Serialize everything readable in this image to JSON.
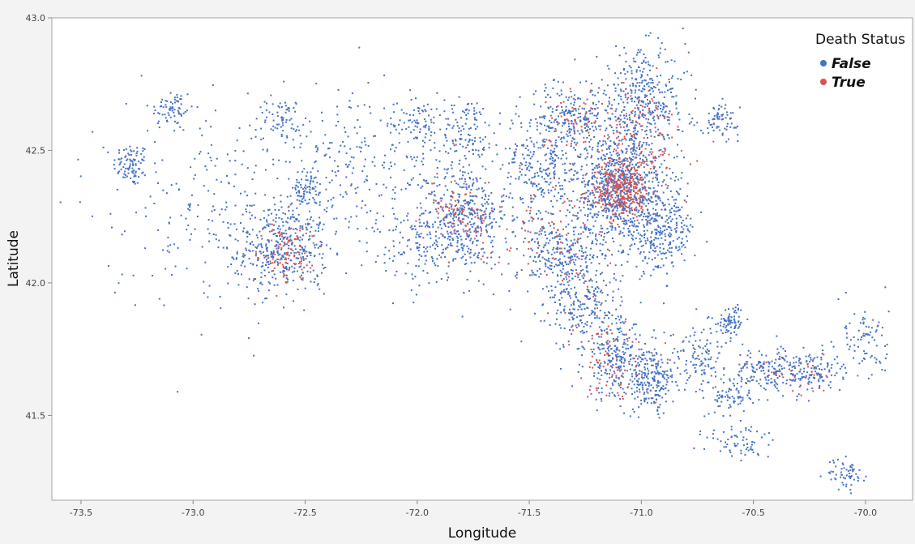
{
  "chart_data": {
    "type": "scatter",
    "title": "",
    "xlabel": "Longitude",
    "ylabel": "Latitude",
    "xlim": [
      -73.63,
      -69.79
    ],
    "ylim": [
      41.18,
      43.0
    ],
    "xticks": [
      -73.5,
      -73.0,
      -72.5,
      -72.0,
      -71.5,
      -71.0,
      -70.5,
      -70.0
    ],
    "xtick_labels": [
      "-73.5",
      "-73.0",
      "-72.5",
      "-72.0",
      "-71.5",
      "-71.0",
      "-70.5",
      "-70.0"
    ],
    "yticks": [
      41.5,
      42.0,
      42.5,
      43.0
    ],
    "ytick_labels": [
      "41.5",
      "42.0",
      "42.5",
      "43.0"
    ],
    "grid": false,
    "legend_position": "top-right",
    "legend_title": "Death Status",
    "series": [
      {
        "name": "False",
        "color": "#4472c4",
        "description": "dense point cloud covering Massachusetts; values given as clusters with point counts",
        "clusters": [
          {
            "lon": -73.28,
            "lat": 42.45,
            "sd_lon": 0.04,
            "sd_lat": 0.04,
            "n": 90
          },
          {
            "lon": -73.1,
            "lat": 42.66,
            "sd_lon": 0.05,
            "sd_lat": 0.04,
            "n": 70
          },
          {
            "lon": -72.6,
            "lat": 42.13,
            "sd_lon": 0.1,
            "sd_lat": 0.08,
            "n": 380
          },
          {
            "lon": -72.5,
            "lat": 42.36,
            "sd_lon": 0.03,
            "sd_lat": 0.03,
            "n": 70
          },
          {
            "lon": -72.6,
            "lat": 42.62,
            "sd_lon": 0.04,
            "sd_lat": 0.04,
            "n": 60
          },
          {
            "lon": -71.8,
            "lat": 42.26,
            "sd_lon": 0.1,
            "sd_lat": 0.1,
            "n": 380
          },
          {
            "lon": -71.78,
            "lat": 42.58,
            "sd_lon": 0.06,
            "sd_lat": 0.06,
            "n": 110
          },
          {
            "lon": -72.0,
            "lat": 42.6,
            "sd_lon": 0.06,
            "sd_lat": 0.06,
            "n": 90
          },
          {
            "lon": -71.45,
            "lat": 42.45,
            "sd_lon": 0.09,
            "sd_lat": 0.12,
            "n": 300
          },
          {
            "lon": -71.3,
            "lat": 42.62,
            "sd_lon": 0.08,
            "sd_lat": 0.06,
            "n": 200
          },
          {
            "lon": -71.1,
            "lat": 42.36,
            "sd_lon": 0.1,
            "sd_lat": 0.1,
            "n": 800
          },
          {
            "lon": -71.0,
            "lat": 42.68,
            "sd_lon": 0.1,
            "sd_lat": 0.1,
            "n": 400
          },
          {
            "lon": -70.92,
            "lat": 42.2,
            "sd_lon": 0.08,
            "sd_lat": 0.08,
            "n": 300
          },
          {
            "lon": -71.35,
            "lat": 42.1,
            "sd_lon": 0.1,
            "sd_lat": 0.08,
            "n": 300
          },
          {
            "lon": -71.25,
            "lat": 41.9,
            "sd_lon": 0.08,
            "sd_lat": 0.08,
            "n": 200
          },
          {
            "lon": -71.1,
            "lat": 41.7,
            "sd_lon": 0.08,
            "sd_lat": 0.07,
            "n": 260
          },
          {
            "lon": -70.95,
            "lat": 41.63,
            "sd_lon": 0.05,
            "sd_lat": 0.06,
            "n": 180
          },
          {
            "lon": -70.75,
            "lat": 41.72,
            "sd_lon": 0.06,
            "sd_lat": 0.06,
            "n": 120
          },
          {
            "lon": -70.6,
            "lat": 41.86,
            "sd_lon": 0.03,
            "sd_lat": 0.03,
            "n": 80
          },
          {
            "lon": -70.65,
            "lat": 42.62,
            "sd_lon": 0.04,
            "sd_lat": 0.03,
            "n": 70
          },
          {
            "lon": -70.45,
            "lat": 41.67,
            "sd_lon": 0.07,
            "sd_lat": 0.04,
            "n": 140
          },
          {
            "lon": -70.25,
            "lat": 41.67,
            "sd_lon": 0.07,
            "sd_lat": 0.04,
            "n": 140
          },
          {
            "lon": -70.0,
            "lat": 41.78,
            "sd_lon": 0.05,
            "sd_lat": 0.08,
            "n": 80
          },
          {
            "lon": -70.6,
            "lat": 41.58,
            "sd_lon": 0.05,
            "sd_lat": 0.04,
            "n": 80
          },
          {
            "lon": -70.55,
            "lat": 41.4,
            "sd_lon": 0.08,
            "sd_lat": 0.04,
            "n": 70
          },
          {
            "lon": -70.09,
            "lat": 41.28,
            "sd_lon": 0.04,
            "sd_lat": 0.03,
            "n": 60
          },
          {
            "lon": -72.9,
            "lat": 42.3,
            "sd_lon": 0.25,
            "sd_lat": 0.2,
            "n": 250
          },
          {
            "lon": -72.3,
            "lat": 42.45,
            "sd_lon": 0.2,
            "sd_lat": 0.15,
            "n": 220
          },
          {
            "lon": -71.95,
            "lat": 42.15,
            "sd_lon": 0.15,
            "sd_lat": 0.08,
            "n": 180
          }
        ]
      },
      {
        "name": "True",
        "color": "#d9534f",
        "description": "red points, most concentrated around Boston",
        "clusters": [
          {
            "lon": -71.09,
            "lat": 42.35,
            "sd_lon": 0.06,
            "sd_lat": 0.06,
            "n": 320
          },
          {
            "lon": -72.58,
            "lat": 42.12,
            "sd_lon": 0.07,
            "sd_lat": 0.06,
            "n": 90
          },
          {
            "lon": -71.8,
            "lat": 42.26,
            "sd_lon": 0.07,
            "sd_lat": 0.07,
            "n": 80
          },
          {
            "lon": -71.0,
            "lat": 42.55,
            "sd_lon": 0.1,
            "sd_lat": 0.1,
            "n": 110
          },
          {
            "lon": -71.15,
            "lat": 41.72,
            "sd_lon": 0.08,
            "sd_lat": 0.08,
            "n": 70
          },
          {
            "lon": -71.3,
            "lat": 42.62,
            "sd_lon": 0.06,
            "sd_lat": 0.06,
            "n": 50
          },
          {
            "lon": -70.3,
            "lat": 41.66,
            "sd_lon": 0.1,
            "sd_lat": 0.04,
            "n": 30
          },
          {
            "lon": -71.4,
            "lat": 42.2,
            "sd_lon": 0.12,
            "sd_lat": 0.12,
            "n": 90
          }
        ]
      }
    ]
  }
}
